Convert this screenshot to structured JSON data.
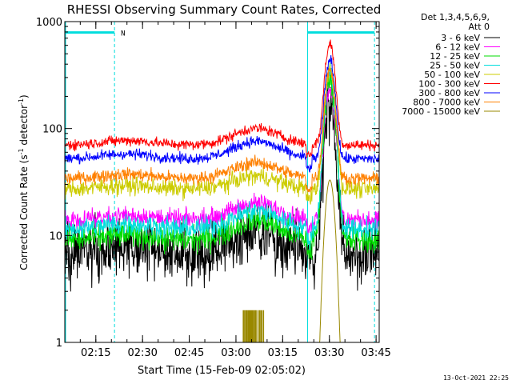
{
  "chart_data": {
    "type": "line",
    "title": "RHESSI Observing Summary Count Rates, Corrected",
    "xlabel": "Start Time (15-Feb-09 02:05:02)",
    "ylabel_main": "Corrected Count Rate (s",
    "ylabel_sup1": "-1",
    "ylabel_mid": " detector",
    "ylabel_sup2": "-1",
    "ylabel_end": ")",
    "yscale": "log",
    "ylim": [
      1,
      1000
    ],
    "ytick_values": [
      1,
      10,
      100,
      1000
    ],
    "ytick_labels": [
      "1",
      "10",
      "100",
      "1000"
    ],
    "xlim": [
      "02:05:02",
      "03:46:00"
    ],
    "xtick_labels": [
      "02:15",
      "02:30",
      "02:45",
      "03:00",
      "03:15",
      "03:30",
      "03:45"
    ],
    "grid": false,
    "legend_position": "right",
    "legend_header": [
      "Det 1,3,4,5,6,9,",
      "Att 0"
    ],
    "series": [
      {
        "name": "3 - 6 keV",
        "color": "#000000",
        "baseline": 6.5,
        "hump": 11,
        "peak": 165,
        "noise": 0.14
      },
      {
        "name": "6 - 12 keV",
        "color": "#ff00ff",
        "baseline": 14,
        "hump": 20,
        "peak": 240,
        "noise": 0.045
      },
      {
        "name": "12 - 25 keV",
        "color": "#00dd00",
        "baseline": 9,
        "hump": 14,
        "peak": 300,
        "noise": 0.06
      },
      {
        "name": "25 - 50 keV",
        "color": "#00dddd",
        "baseline": 11.5,
        "hump": 17,
        "peak": 330,
        "noise": 0.05
      },
      {
        "name": "50 - 100 keV",
        "color": "#cccc00",
        "baseline": 27,
        "hump": 36,
        "peak": 350,
        "noise": 0.04
      },
      {
        "name": "100 - 300 keV",
        "color": "#ff0000",
        "baseline": 70,
        "hump": 100,
        "peak": 620,
        "noise": 0.025
      },
      {
        "name": "300 - 800 keV",
        "color": "#0000ff",
        "baseline": 52,
        "hump": 76,
        "peak": 440,
        "noise": 0.025
      },
      {
        "name": "800 - 7000 keV",
        "color": "#ff8000",
        "baseline": 34,
        "hump": 48,
        "peak": 360,
        "noise": 0.03
      },
      {
        "name": "7000 - 15000 keV",
        "color": "#998800",
        "baseline": 1,
        "hump": 1,
        "peak": 33,
        "noise": 0
      }
    ],
    "flags": {
      "color": "#00dddd",
      "label": "N"
    },
    "timestamp": "13-Oct-2021 22:25"
  }
}
